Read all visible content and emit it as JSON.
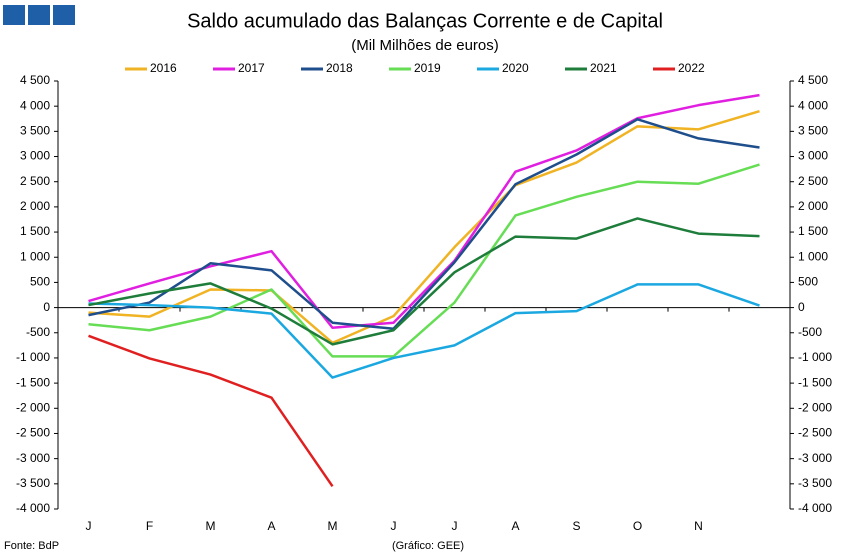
{
  "chart_data": {
    "type": "line",
    "title": "Saldo acumulado das Balanças Corrente e de Capital",
    "subtitle": "(Mil Milhões de euros)",
    "categories": [
      "J",
      "F",
      "M",
      "A",
      "M",
      "J",
      "J",
      "A",
      "S",
      "O",
      "N",
      null
    ],
    "series": [
      {
        "name": "2016",
        "color": "#f0b323",
        "values": [
          -100,
          -180,
          360,
          340,
          -700,
          -170,
          1200,
          2430,
          2880,
          3600,
          3540,
          3900
        ]
      },
      {
        "name": "2017",
        "color": "#e01fe0",
        "values": [
          130,
          480,
          820,
          1120,
          -400,
          -300,
          930,
          2700,
          3120,
          3760,
          4020,
          4220
        ]
      },
      {
        "name": "2018",
        "color": "#1f4e8c",
        "values": [
          -150,
          100,
          880,
          740,
          -300,
          -420,
          900,
          2450,
          3040,
          3740,
          3360,
          3180
        ]
      },
      {
        "name": "2019",
        "color": "#66dd55",
        "values": [
          -330,
          -450,
          -180,
          360,
          -970,
          -970,
          100,
          1830,
          2200,
          2500,
          2460,
          2840
        ]
      },
      {
        "name": "2020",
        "color": "#1ba8e0",
        "values": [
          80,
          50,
          0,
          -120,
          -1390,
          -1000,
          -750,
          -110,
          -70,
          460,
          460,
          40
        ]
      },
      {
        "name": "2021",
        "color": "#1e7d3a",
        "values": [
          50,
          280,
          480,
          -20,
          -730,
          -450,
          700,
          1410,
          1370,
          1770,
          1470,
          1420
        ]
      },
      {
        "name": "2022",
        "color": "#e02020",
        "values": [
          -560,
          -1010,
          -1330,
          -1790,
          -3550,
          null,
          null,
          null,
          null,
          null,
          null,
          null
        ]
      }
    ],
    "ylim": [
      -4000,
      4500
    ],
    "yticks": [
      {
        "value": 4500,
        "label": "4 500"
      },
      {
        "value": 4000,
        "label": "4 000"
      },
      {
        "value": 3500,
        "label": "3 500"
      },
      {
        "value": 3000,
        "label": "3 000"
      },
      {
        "value": 2500,
        "label": "2 500"
      },
      {
        "value": 2000,
        "label": "2 000"
      },
      {
        "value": 1500,
        "label": "1 500"
      },
      {
        "value": 1000,
        "label": "1 000"
      },
      500,
      0,
      -500,
      {
        "value": -1000,
        "label": "-1 000"
      },
      {
        "value": -1500,
        "label": "-1 500"
      },
      {
        "value": -2000,
        "label": "-2 000"
      },
      {
        "value": -2500,
        "label": "-2 500"
      },
      {
        "value": -3000,
        "label": "-3 000"
      },
      {
        "value": -3500,
        "label": "-3 500"
      },
      {
        "value": -4000,
        "label": "-4 000"
      }
    ],
    "source": "Fonte: BdP",
    "credit": "(Gráfico: GEE)"
  }
}
